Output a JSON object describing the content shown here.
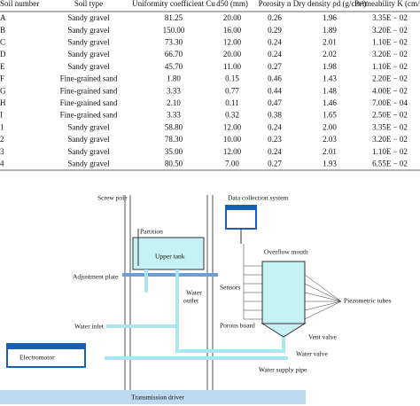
{
  "table": {
    "header": [
      "Soil number",
      "Soil type",
      "Uniformity coefficient Cu",
      "d50 (mm)",
      "Porosity n",
      "Dry density ρd (g/cm³)",
      "Permeability K (cm/s)"
    ],
    "rows": [
      [
        "A",
        "Sandy gravel",
        "81.25",
        "20.00",
        "0.26",
        "1.96",
        "3.35E − 02"
      ],
      [
        "B",
        "Sandy gravel",
        "150.00",
        "16.00",
        "0.29",
        "1.89",
        "3.20E − 02"
      ],
      [
        "C",
        "Sandy gravel",
        "73.30",
        "12.00",
        "0.24",
        "2.01",
        "1.10E − 02"
      ],
      [
        "D",
        "Sandy gravel",
        "66.70",
        "20.00",
        "0.24",
        "2.02",
        "3.20E − 02"
      ],
      [
        "E",
        "Sandy gravel",
        "45.70",
        "11.00",
        "0.27",
        "1.98",
        "1.10E − 02"
      ],
      [
        "F",
        "Fine-grained sand",
        "1.80",
        "0.15",
        "0.46",
        "1.43",
        "2.20E − 02"
      ],
      [
        "G",
        "Fine-grained sand",
        "3.33",
        "0.77",
        "0.44",
        "1.48",
        "4.00E − 02"
      ],
      [
        "H",
        "Fine-grained sand",
        "2.10",
        "0.11",
        "0.47",
        "1.46",
        "7.00E − 04"
      ],
      [
        "I",
        "Fine-grained sand",
        "3.33",
        "0.32",
        "0.38",
        "1.65",
        "2.50E − 02"
      ],
      [
        "1",
        "Sandy gravel",
        "58.80",
        "12.00",
        "0.24",
        "2.00",
        "3.35E − 02"
      ],
      [
        "2",
        "Sandy gravel",
        "78.30",
        "10.00",
        "0.23",
        "2.03",
        "3.20E − 02"
      ],
      [
        "3",
        "Sandy gravel",
        "35.00",
        "12.00",
        "0.24",
        "2.01",
        "1.10E − 02"
      ],
      [
        "4",
        "Sandy gravel",
        "80.50",
        "7.00",
        "0.27",
        "1.93",
        "6.55E − 02"
      ]
    ]
  },
  "diagram": {
    "labels": {
      "screw_pole": "Screw pole",
      "partition": "Partition",
      "upper_tank": "Upper tank",
      "adjustment_plate": "Adjustment plate",
      "water_outlet_1": "Water",
      "water_outlet_2": "outlet",
      "water_inlet": "Water inlet",
      "electromotor": "Electromotor",
      "transmission_driver": "Transmission driver",
      "data_collection": "Data collection system",
      "overflow_mouth": "Overflow mouth",
      "sensors": "Sensors",
      "piezometric_tubes": "Piezometric tubes",
      "porous_board": "Porous board",
      "vent_valve": "Vent valve",
      "water_valve": "Water valve",
      "water_supply_pipe": "Water supply pipe"
    }
  }
}
